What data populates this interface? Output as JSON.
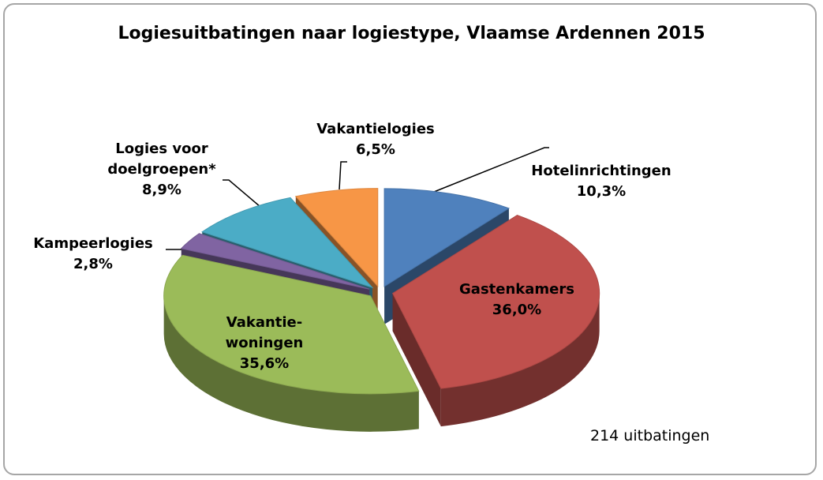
{
  "chart_data": {
    "type": "pie3d",
    "title": "Logiesuitbatingen naar logiestype, Vlaamse Ardennen 2015",
    "categories": [
      "Hotelinrichtingen",
      "Gastenkamers",
      "Vakantie-woningen",
      "Kampeerlogies",
      "Logies voor doelgroepen*",
      "Vakantielogies"
    ],
    "values": [
      10.3,
      36.0,
      35.6,
      2.8,
      8.9,
      6.5
    ],
    "value_labels": [
      "10,3%",
      "36,0%",
      "35,6%",
      "2,8%",
      "8,9%",
      "6,5%"
    ],
    "colors": [
      "#4f81bd",
      "#c0504d",
      "#9bbb59",
      "#8064a2",
      "#4bacc6",
      "#f79646"
    ],
    "annotation": "214 uitbatingen"
  }
}
